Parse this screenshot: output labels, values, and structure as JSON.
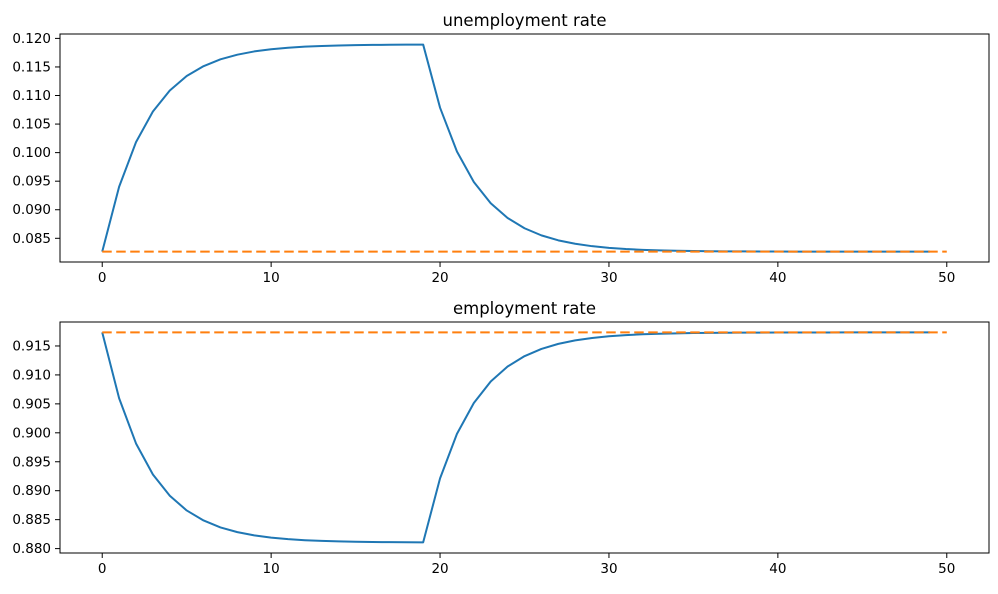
{
  "figure": {
    "background": "#ffffff",
    "text_color": "#000000",
    "spine_color": "#000000"
  },
  "chart_data": [
    {
      "type": "line",
      "title": "unemployment rate",
      "grid": false,
      "legend": null,
      "xlim": [
        -2.5,
        52.5
      ],
      "ylim": [
        0.08085,
        0.12077
      ],
      "x_ticks": [
        0,
        10,
        20,
        30,
        40,
        50
      ],
      "x_tick_labels": [
        "0",
        "10",
        "20",
        "30",
        "40",
        "50"
      ],
      "y_ticks": [
        0.085,
        0.09,
        0.095,
        0.1,
        0.105,
        0.11,
        0.115,
        0.12
      ],
      "y_tick_labels": [
        "0.085",
        "0.090",
        "0.095",
        "0.100",
        "0.105",
        "0.110",
        "0.115",
        "0.120"
      ],
      "series": [
        {
          "name": "unemployment-path-line",
          "color": "#1f77b4",
          "style": "solid",
          "values": [
            0.08266,
            0.09403,
            0.10184,
            0.1072,
            0.11088,
            0.11341,
            0.11514,
            0.11634,
            0.11715,
            0.11772,
            0.1181,
            0.11837,
            0.11855,
            0.11867,
            0.11876,
            0.11882,
            0.11886,
            0.11889,
            0.11891,
            0.11892,
            0.10787,
            0.10019,
            0.09485,
            0.09113,
            0.08855,
            0.08676,
            0.08551,
            0.08464,
            0.08404,
            0.08362,
            0.08333,
            0.08312,
            0.08298,
            0.08288,
            0.08282,
            0.08277,
            0.08273,
            0.08271,
            0.0827,
            0.08269,
            0.08268,
            0.08267,
            0.08267,
            0.08267,
            0.08266,
            0.08266,
            0.08266,
            0.08266,
            0.08266,
            0.08266
          ]
        },
        {
          "name": "unemployment-steady-state-line",
          "color": "#ff7f0e",
          "style": "dashed",
          "x": [
            0,
            50
          ],
          "values": [
            0.08266,
            0.08266
          ]
        }
      ]
    },
    {
      "type": "line",
      "title": "employment rate",
      "grid": false,
      "legend": null,
      "xlim": [
        -2.5,
        52.5
      ],
      "ylim": [
        0.87924,
        0.91914
      ],
      "x_ticks": [
        0,
        10,
        20,
        30,
        40,
        50
      ],
      "x_tick_labels": [
        "0",
        "10",
        "20",
        "30",
        "40",
        "50"
      ],
      "y_ticks": [
        0.88,
        0.885,
        0.89,
        0.895,
        0.9,
        0.905,
        0.91,
        0.915
      ],
      "y_tick_labels": [
        "0.880",
        "0.885",
        "0.890",
        "0.895",
        "0.900",
        "0.905",
        "0.910",
        "0.915"
      ],
      "series": [
        {
          "name": "employment-path-line",
          "color": "#1f77b4",
          "style": "solid",
          "values": [
            0.91734,
            0.90597,
            0.89816,
            0.8928,
            0.88912,
            0.88659,
            0.88486,
            0.88366,
            0.88285,
            0.88228,
            0.8819,
            0.88163,
            0.88145,
            0.88133,
            0.88124,
            0.88118,
            0.88114,
            0.88111,
            0.88109,
            0.88108,
            0.89213,
            0.89981,
            0.90515,
            0.90887,
            0.91145,
            0.91324,
            0.91449,
            0.91536,
            0.91596,
            0.91638,
            0.91667,
            0.91688,
            0.91702,
            0.91712,
            0.91718,
            0.91723,
            0.91727,
            0.91729,
            0.9173,
            0.91731,
            0.91732,
            0.91733,
            0.91733,
            0.91733,
            0.91734,
            0.91734,
            0.91734,
            0.91734,
            0.91734,
            0.91734
          ]
        },
        {
          "name": "employment-steady-state-line",
          "color": "#ff7f0e",
          "style": "dashed",
          "x": [
            0,
            50
          ],
          "values": [
            0.91734,
            0.91734
          ]
        }
      ]
    }
  ]
}
